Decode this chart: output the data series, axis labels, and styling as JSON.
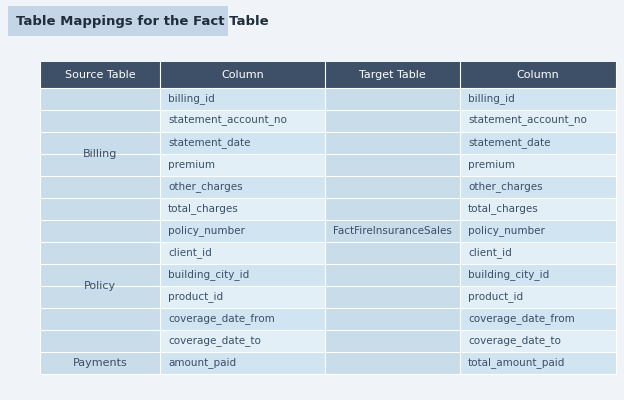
{
  "title": "Table Mappings for the Fact Table",
  "title_bg": "#c5d5e8",
  "bg_color": "#f0f4f8",
  "header_bg": "#3d5068",
  "header_fg": "#ffffff",
  "header_labels": [
    "Source Table",
    "Column",
    "Target Table",
    "Column"
  ],
  "row_alt1": "#d0e4f2",
  "row_alt2": "#e2eff7",
  "source_group_bg": "#c8dcea",
  "source_text_color": "#3a4e66",
  "col_text_color": "#3a4e66",
  "rows": [
    {
      "col_src": "billing_id",
      "col_tgt": "billing_id"
    },
    {
      "col_src": "statement_account_no",
      "col_tgt": "statement_account_no"
    },
    {
      "col_src": "statement_date",
      "col_tgt": "statement_date"
    },
    {
      "col_src": "premium",
      "col_tgt": "premium"
    },
    {
      "col_src": "other_charges",
      "col_tgt": "other_charges"
    },
    {
      "col_src": "total_charges",
      "col_tgt": "total_charges"
    },
    {
      "col_src": "policy_number",
      "col_tgt": "policy_number"
    },
    {
      "col_src": "client_id",
      "col_tgt": "client_id"
    },
    {
      "col_src": "building_city_id",
      "col_tgt": "building_city_id"
    },
    {
      "col_src": "product_id",
      "col_tgt": "product_id"
    },
    {
      "col_src": "coverage_date_from",
      "col_tgt": "coverage_date_from"
    },
    {
      "col_src": "coverage_date_to",
      "col_tgt": "coverage_date_to"
    },
    {
      "col_src": "amount_paid",
      "col_tgt": "total_amount_paid"
    }
  ],
  "source_groups": [
    [
      0,
      5,
      "Billing"
    ],
    [
      6,
      11,
      "Policy"
    ],
    [
      12,
      12,
      "Payments"
    ]
  ],
  "target_label": "FactFireInsuranceSales",
  "target_rows": [
    0,
    12
  ]
}
